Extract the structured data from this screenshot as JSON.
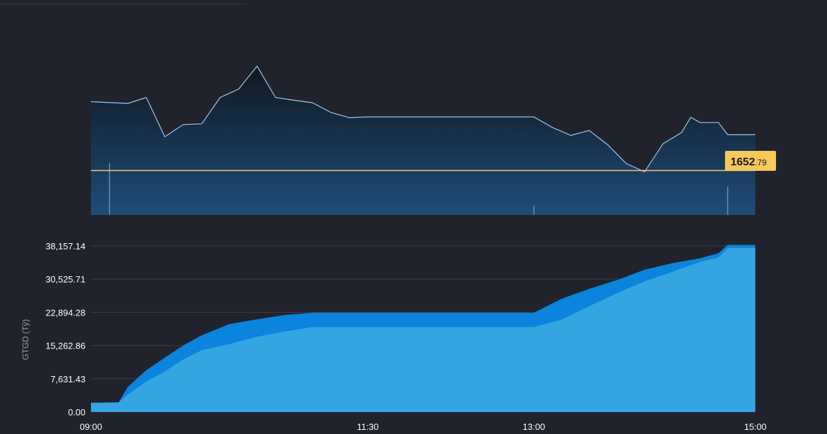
{
  "colors": {
    "background": "#20232b",
    "index_line": "#9ec8ee",
    "reference_line": "#e9cf7a",
    "reference_badge": "#f7c85a",
    "value_outer": "#0a84dc",
    "value_inner": "#35a5e2",
    "grid": "#3a3e48"
  },
  "chart_data": [
    {
      "type": "line",
      "reference_value": "1652.79",
      "reference_label": {
        "major": "1652",
        "minor": ".79"
      },
      "x": [
        "09:00",
        "09:20",
        "09:30",
        "09:40",
        "09:50",
        "10:00",
        "10:10",
        "10:20",
        "10:30",
        "10:40",
        "10:50",
        "11:00",
        "11:10",
        "11:20",
        "11:30",
        "12:00",
        "12:30",
        "13:00",
        "13:10",
        "13:20",
        "13:30",
        "13:40",
        "13:50",
        "14:00",
        "14:10",
        "14:20",
        "14:25",
        "14:30",
        "14:40",
        "14:45",
        "15:00"
      ],
      "series": [
        {
          "values": [
            1672.6,
            1672.1,
            1673.8,
            1662.5,
            1666.0,
            1666.2,
            1673.8,
            1676.2,
            1682.8,
            1673.8,
            1673.0,
            1672.3,
            1669.5,
            1668.0,
            1668.2,
            1668.2,
            1668.2,
            1668.2,
            1665.2,
            1662.9,
            1664.3,
            1660.2,
            1654.8,
            1652.4,
            1660.5,
            1663.7,
            1668.1,
            1666.6,
            1666.6,
            1663.1,
            1663.1
          ]
        }
      ],
      "volume_spikes": [
        {
          "x": "09:10",
          "value": 1.0
        },
        {
          "x": "13:00",
          "value": 0.18
        },
        {
          "x": "14:45",
          "value": 0.55
        }
      ],
      "grid": false
    },
    {
      "type": "area",
      "ylabel": "GTGD (Tỷ)",
      "yticks": [
        "0.00",
        "7,631.43",
        "15,262.86",
        "22,894.28",
        "30,525.71",
        "38,157.14"
      ],
      "ylim": [
        0,
        38157.14
      ],
      "xticks": [
        "09:00",
        "11:30",
        "13:00",
        "15:00"
      ],
      "x": [
        "09:00",
        "09:15",
        "09:20",
        "09:30",
        "09:40",
        "09:50",
        "10:00",
        "10:15",
        "10:30",
        "10:45",
        "11:00",
        "11:15",
        "11:30",
        "12:00",
        "12:30",
        "13:00",
        "13:15",
        "13:30",
        "13:45",
        "14:00",
        "14:15",
        "14:30",
        "14:40",
        "14:45",
        "15:00"
      ],
      "series": [
        {
          "values": [
            2100,
            2200,
            5800,
            9600,
            12500,
            15300,
            17600,
            20200,
            21300,
            22300,
            22800,
            22800,
            22800,
            22800,
            22800,
            22800,
            26000,
            28300,
            30300,
            32700,
            34200,
            35300,
            36500,
            38400,
            38400
          ]
        },
        {
          "values": [
            2100,
            2200,
            4000,
            7000,
            9300,
            12100,
            14200,
            15600,
            17300,
            18500,
            19500,
            19500,
            19500,
            19500,
            19500,
            19500,
            21200,
            24300,
            27300,
            30000,
            32200,
            34500,
            35500,
            37700,
            37700
          ]
        }
      ],
      "grid": true
    }
  ]
}
